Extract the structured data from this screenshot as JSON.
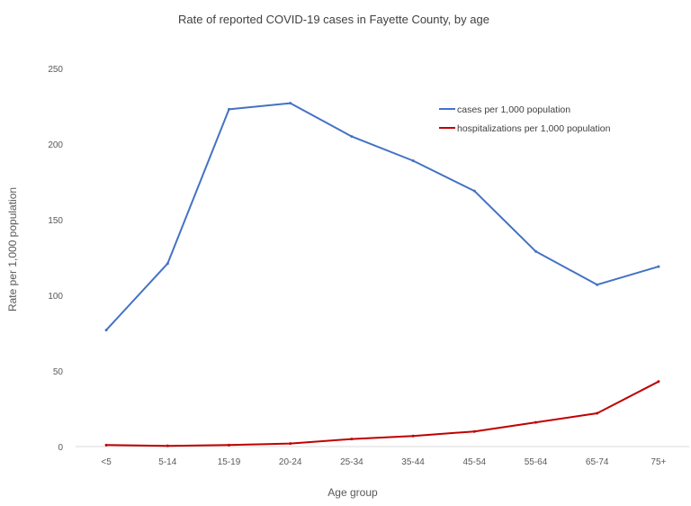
{
  "chart_data": {
    "type": "line",
    "title": "Rate of reported COVID-19 cases in Fayette County, by age",
    "xlabel": "Age group",
    "ylabel": "Rate per 1,000 population",
    "ylim": [
      0,
      250
    ],
    "yticks": [
      0,
      50,
      100,
      150,
      200,
      250
    ],
    "grid": false,
    "legend_position": "top-right",
    "categories": [
      "<5",
      "5-14",
      "15-19",
      "20-24",
      "25-34",
      "35-44",
      "45-54",
      "55-64",
      "65-74",
      "75+"
    ],
    "series": [
      {
        "name": "cases per 1,000 population",
        "color": "#4472c4",
        "values": [
          77,
          121,
          223,
          227,
          205,
          189,
          169,
          129,
          107,
          119
        ]
      },
      {
        "name": "hospitalizations per 1,000 population",
        "color": "#c00000",
        "values": [
          1,
          0.5,
          1,
          2,
          5,
          7,
          10,
          16,
          22,
          43
        ]
      }
    ]
  }
}
